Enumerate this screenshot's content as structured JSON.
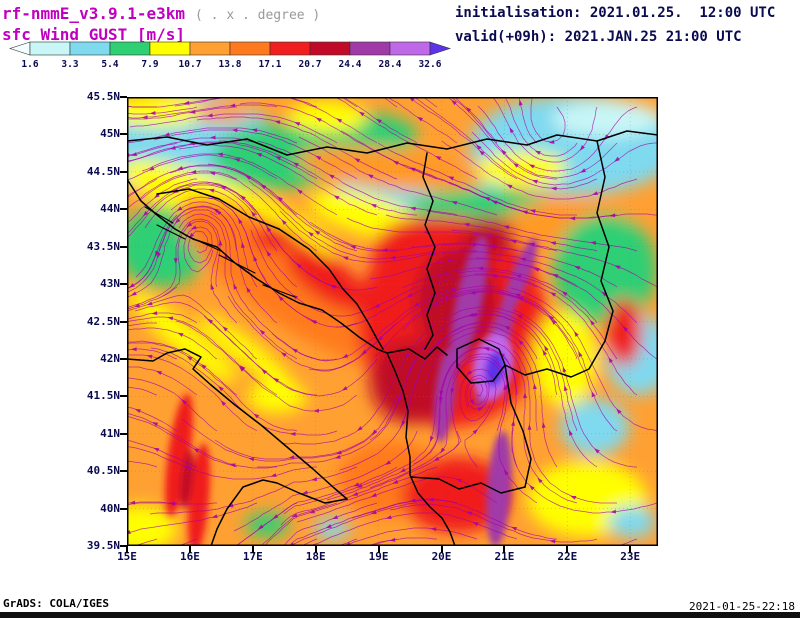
{
  "header": {
    "model_title": "rf-nmmE_v3.9.1-e3km",
    "grid_note": "( . x . degree )",
    "field_title": "sfc Wind GUST [m/s]",
    "init_line": "initialisation: 2021.01.25.  12:00 UTC",
    "valid_line": "valid(+09h): 2021.JAN.25 21:00 UTC"
  },
  "colorbar": {
    "tick_labels": [
      "1.6",
      "3.3",
      "5.4",
      "7.9",
      "10.7",
      "13.8",
      "17.1",
      "20.7",
      "24.4",
      "28.4",
      "32.6"
    ],
    "colors": {
      "below": "#f2feff",
      "segments": [
        "#c9f6f6",
        "#7fd9ef",
        "#2fcf74",
        "#ffff00",
        "#ffa033",
        "#ff7a1e",
        "#f01e1e",
        "#c00a28",
        "#a03aa8",
        "#c069e8"
      ],
      "above": "#5b33e8"
    }
  },
  "map": {
    "lat_labels": [
      "45.5N",
      "45N",
      "44.5N",
      "44N",
      "43.5N",
      "43N",
      "42.5N",
      "42N",
      "41.5N",
      "41N",
      "40.5N",
      "40N",
      "39.5N"
    ],
    "lon_labels": [
      "15E",
      "16E",
      "17E",
      "18E",
      "19E",
      "20E",
      "21E",
      "22E",
      "23E"
    ],
    "streamline_color": "#a800a8"
  },
  "footer": {
    "left": "GrADS: COLA/IGES",
    "right": "2021-01-25-22:18"
  },
  "colors": {
    "title_magenta": "#c000c0",
    "note_gray": "#9a9a9a",
    "label_navy": "#0a0a50",
    "streamline_purple": "#a800a8"
  },
  "chart_data": {
    "type": "heatmap",
    "title": "sfc Wind GUST [m/s]",
    "legend_bounds_m_s": [
      1.6,
      3.3,
      5.4,
      7.9,
      10.7,
      13.8,
      17.1,
      20.7,
      24.4,
      28.4,
      32.6
    ],
    "lat_axis": [
      "39.5N",
      "45.5N"
    ],
    "lon_axis": [
      "15E",
      "23E"
    ],
    "legend_position": "top",
    "grid": "dotted"
  }
}
